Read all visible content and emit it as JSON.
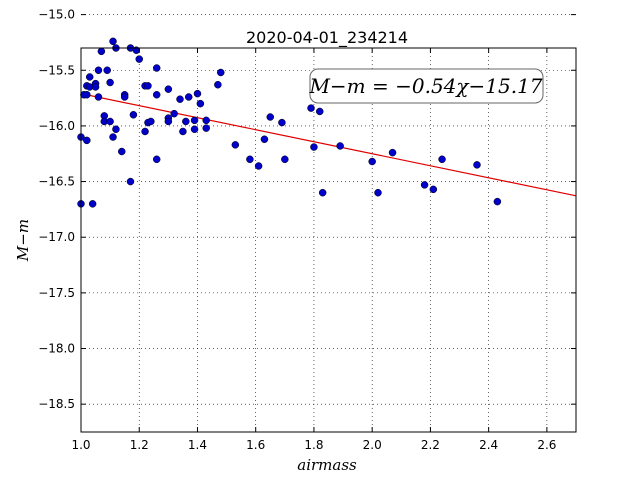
{
  "chart_data": {
    "type": "scatter",
    "title": "2020-04-01_234214",
    "xlabel": "airmass",
    "ylabel": "M−m",
    "xlim": [
      1.0,
      2.7
    ],
    "ylim": [
      -15.3,
      -18.75
    ],
    "y_inverted": true,
    "grid": true,
    "x_ticks": [
      1.0,
      1.2,
      1.4,
      1.6,
      1.8,
      2.0,
      2.2,
      2.4,
      2.6
    ],
    "x_tick_labels": [
      "1.0",
      "1.2",
      "1.4",
      "1.6",
      "1.8",
      "2.0",
      "2.2",
      "2.4",
      "2.6"
    ],
    "y_ticks": [
      -15.0,
      -15.5,
      -16.0,
      -16.5,
      -17.0,
      -17.5,
      -18.0,
      -18.5
    ],
    "y_tick_labels": [
      "−15.0",
      "−15.5",
      "−16.0",
      "−16.5",
      "−17.0",
      "−17.5",
      "−18.0",
      "−18.5"
    ],
    "annotation": "M−m = −0.54χ−15.17",
    "fit": {
      "slope": -0.54,
      "intercept": -15.17,
      "x_range": [
        1.0,
        2.7
      ],
      "color": "#e00000"
    },
    "point_color": "#0000c8",
    "points": [
      [
        1.0,
        -16.1
      ],
      [
        1.0,
        -16.7
      ],
      [
        1.01,
        -15.72
      ],
      [
        1.02,
        -15.64
      ],
      [
        1.02,
        -15.72
      ],
      [
        1.02,
        -16.13
      ],
      [
        1.03,
        -15.56
      ],
      [
        1.03,
        -15.65
      ],
      [
        1.04,
        -16.7
      ],
      [
        1.05,
        -15.62
      ],
      [
        1.05,
        -15.65
      ],
      [
        1.06,
        -15.74
      ],
      [
        1.06,
        -15.5
      ],
      [
        1.07,
        -15.33
      ],
      [
        1.08,
        -15.91
      ],
      [
        1.08,
        -15.96
      ],
      [
        1.09,
        -15.5
      ],
      [
        1.1,
        -15.61
      ],
      [
        1.1,
        -15.96
      ],
      [
        1.11,
        -15.24
      ],
      [
        1.11,
        -16.1
      ],
      [
        1.12,
        -15.3
      ],
      [
        1.12,
        -16.03
      ],
      [
        1.14,
        -16.23
      ],
      [
        1.15,
        -15.72
      ],
      [
        1.15,
        -15.74
      ],
      [
        1.17,
        -15.3
      ],
      [
        1.17,
        -16.5
      ],
      [
        1.18,
        -15.9
      ],
      [
        1.19,
        -15.32
      ],
      [
        1.2,
        -15.4
      ],
      [
        1.22,
        -15.64
      ],
      [
        1.22,
        -16.05
      ],
      [
        1.23,
        -15.64
      ],
      [
        1.23,
        -15.97
      ],
      [
        1.24,
        -15.96
      ],
      [
        1.26,
        -15.72
      ],
      [
        1.26,
        -15.48
      ],
      [
        1.26,
        -16.3
      ],
      [
        1.3,
        -15.67
      ],
      [
        1.3,
        -15.93
      ],
      [
        1.3,
        -15.96
      ],
      [
        1.32,
        -15.89
      ],
      [
        1.34,
        -15.76
      ],
      [
        1.35,
        -16.05
      ],
      [
        1.36,
        -15.96
      ],
      [
        1.37,
        -15.74
      ],
      [
        1.39,
        -15.95
      ],
      [
        1.39,
        -16.03
      ],
      [
        1.4,
        -15.71
      ],
      [
        1.41,
        -15.8
      ],
      [
        1.43,
        -15.95
      ],
      [
        1.43,
        -16.02
      ],
      [
        1.47,
        -15.63
      ],
      [
        1.48,
        -15.52
      ],
      [
        1.53,
        -16.17
      ],
      [
        1.58,
        -16.3
      ],
      [
        1.61,
        -16.36
      ],
      [
        1.63,
        -16.12
      ],
      [
        1.65,
        -15.92
      ],
      [
        1.69,
        -15.97
      ],
      [
        1.7,
        -16.3
      ],
      [
        1.79,
        -15.84
      ],
      [
        1.8,
        -16.19
      ],
      [
        1.82,
        -15.87
      ],
      [
        1.83,
        -16.6
      ],
      [
        1.89,
        -16.18
      ],
      [
        1.9,
        -15.57
      ],
      [
        2.0,
        -16.32
      ],
      [
        2.02,
        -16.6
      ],
      [
        2.07,
        -16.24
      ],
      [
        2.18,
        -16.53
      ],
      [
        2.21,
        -16.57
      ],
      [
        2.24,
        -16.3
      ],
      [
        2.36,
        -16.35
      ],
      [
        2.43,
        -16.68
      ]
    ]
  }
}
